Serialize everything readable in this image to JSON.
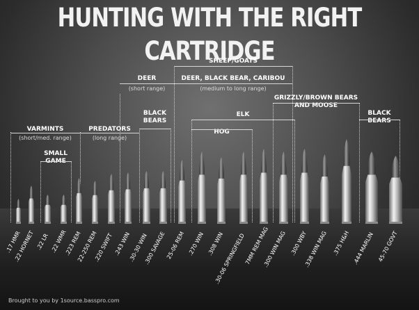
{
  "title": "HUNTING WITH THE RIGHT CARTRIDGE",
  "groups": {
    "varmints": {
      "label": "VARMINTS",
      "sub": "(short/med. range)"
    },
    "small_game": {
      "label": "SMALL GAME"
    },
    "predators": {
      "label": "PREDATORS",
      "sub": "(long range)"
    },
    "deer_short": {
      "label": "DEER",
      "sub": "(short range)"
    },
    "black_bears_1": {
      "label": "BLACK BEARS"
    },
    "sheep_goats": {
      "label": "SHEEP/GOATS"
    },
    "deer_bear_caribou": {
      "label": "DEER, BLACK BEAR, CARIBOU",
      "sub": "(medium to long range)"
    },
    "elk": {
      "label": "ELK"
    },
    "hog": {
      "label": "HOG"
    },
    "grizzly_moose": {
      "label": "GRIZZLY/BROWN BEARS AND MOOSE"
    },
    "black_bears_2": {
      "label": "BLACK BEARS"
    }
  },
  "cartridges": [
    ".17 HMR",
    ".22 HORNET",
    ".22 LR",
    ".22 WMR",
    ".223 REM",
    "22-250 REM",
    ".220 SWIFT",
    ".243 WIN",
    ".30-30 WIN",
    ".300 SAVAGE",
    "25-06 REM",
    ".270 WIN",
    ".308 WIN",
    ".30-06 SPRINGFIELD",
    "7MM REM MAG",
    ".300 WIN MAG",
    ".300 WBY",
    ".338 WIN MAG",
    ".375 H&H",
    ".444 MARLIN",
    "45-70 GOVT"
  ],
  "credit": "Brought to you by 1source.basspro.com"
}
